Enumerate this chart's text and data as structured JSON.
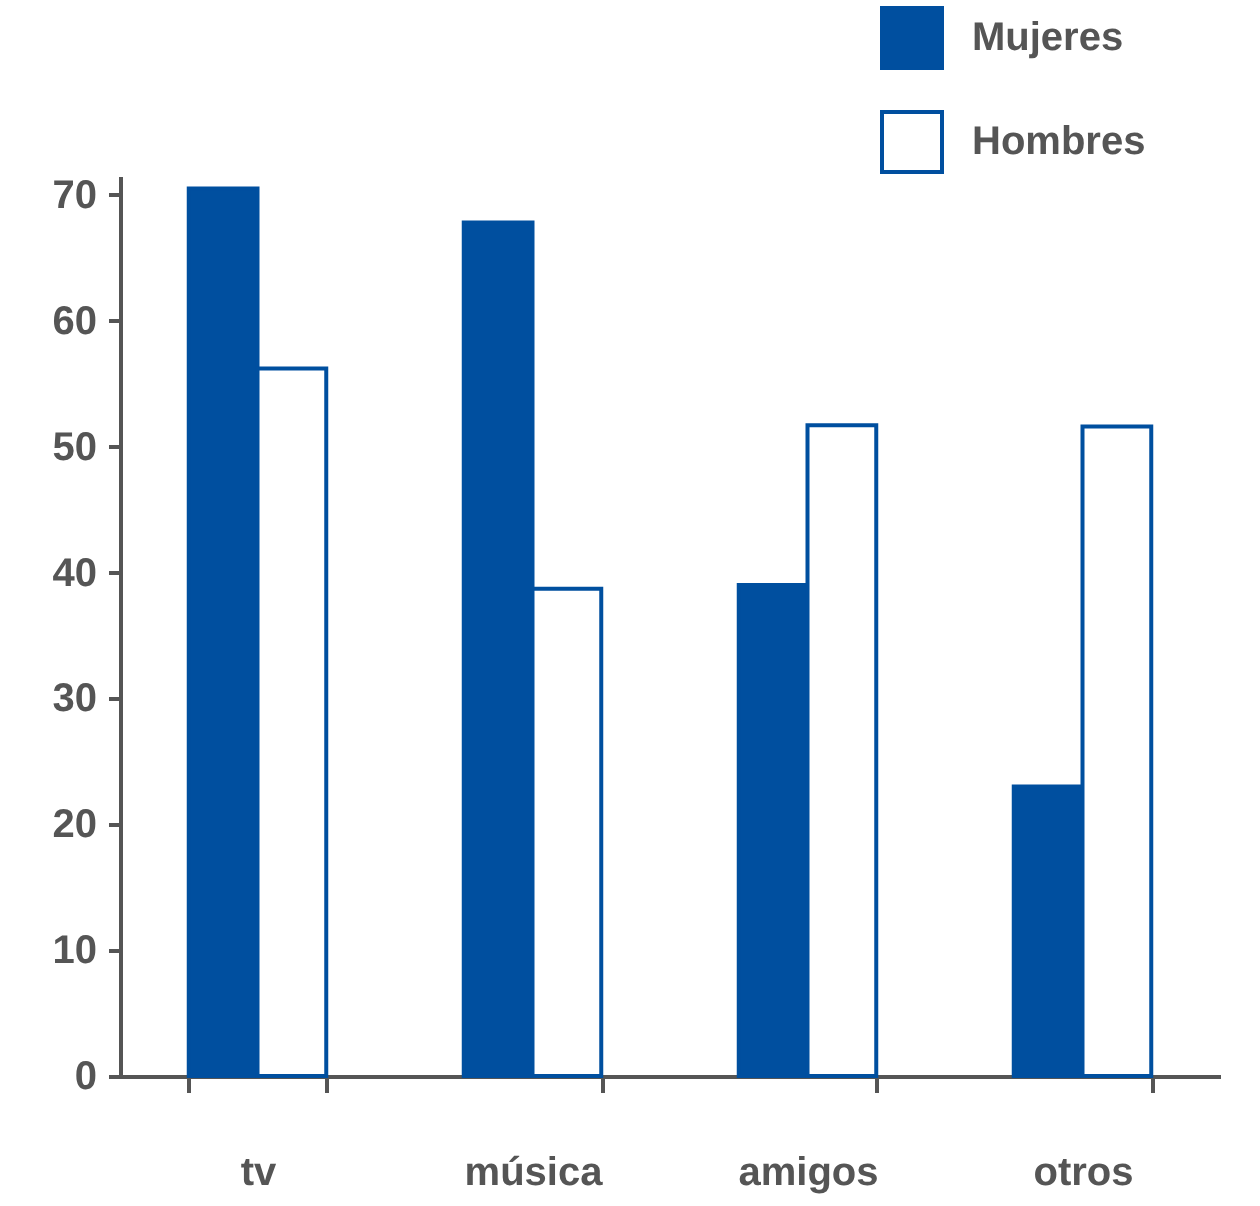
{
  "chart_data": {
    "type": "bar",
    "categories": [
      "tv",
      "música",
      "amigos",
      "otros"
    ],
    "series": [
      {
        "name": "Mujeres",
        "color": "#004f9f",
        "values": [
          70.5,
          67.8,
          39,
          23
        ]
      },
      {
        "name": "Hombres",
        "color": "#ffffff",
        "values": [
          56.2,
          38.7,
          51.7,
          51.6
        ]
      }
    ],
    "ylim": [
      0,
      71.5
    ],
    "yticks": [
      0,
      10,
      20,
      30,
      40,
      50,
      60,
      70
    ],
    "grid": false,
    "legend": "top right"
  }
}
